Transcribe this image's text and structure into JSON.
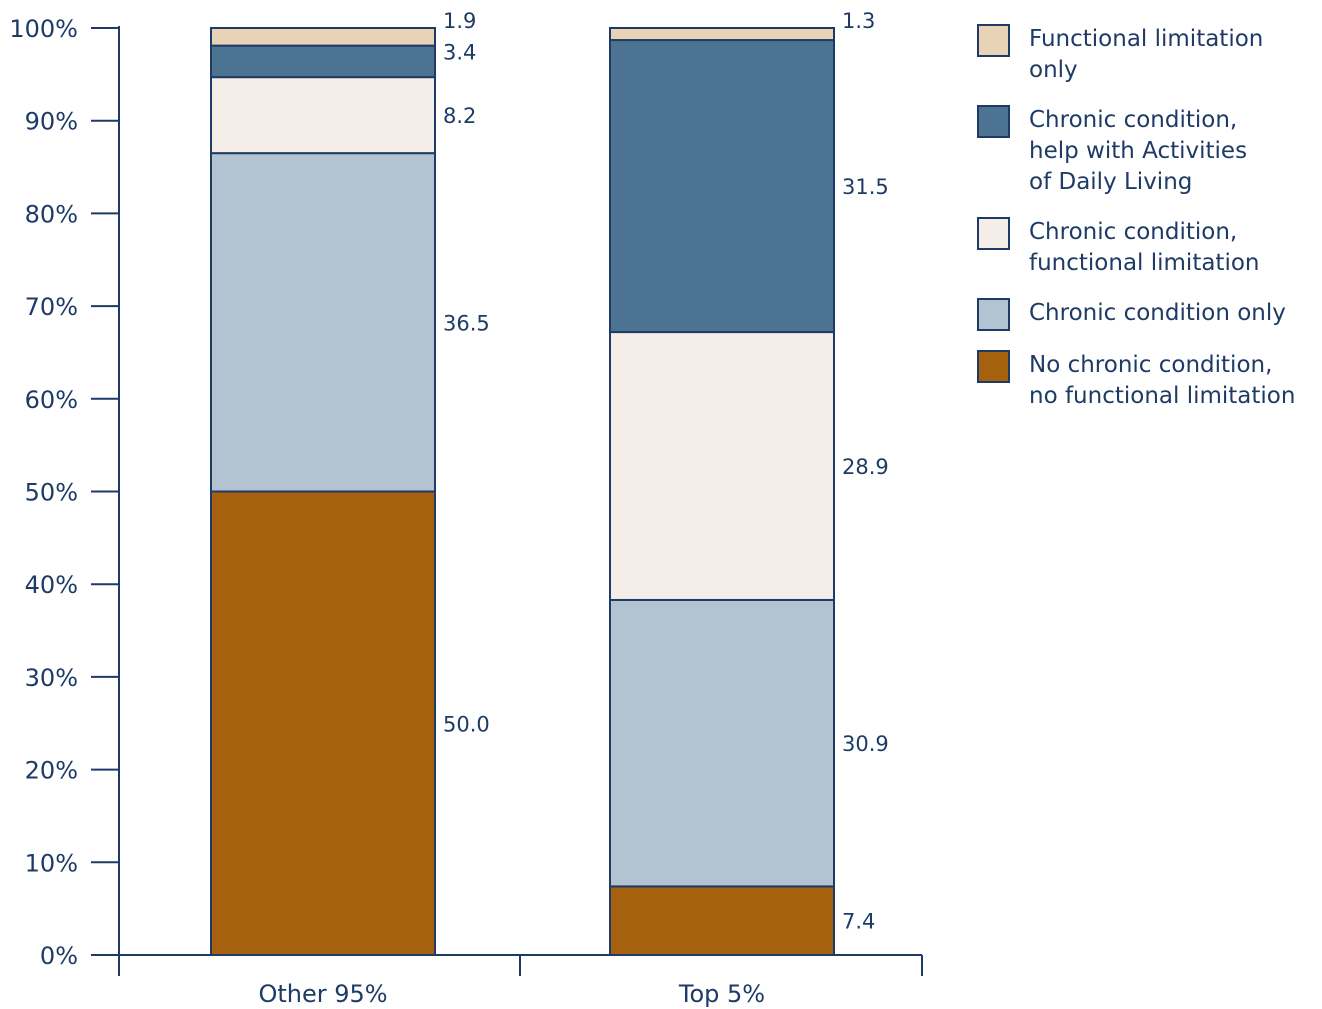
{
  "chart_data": {
    "type": "bar",
    "stacked": true,
    "categories": [
      "Other 95%",
      "Top 5%"
    ],
    "yticks": [
      "0%",
      "10%",
      "20%",
      "30%",
      "40%",
      "50%",
      "60%",
      "70%",
      "80%",
      "90%",
      "100%"
    ],
    "ylim": [
      0,
      100
    ],
    "grid": false,
    "legend_position": "right",
    "series": [
      {
        "name": "No chronic condition,\nno functional limitation",
        "color": "#a5610d",
        "values": [
          50.0,
          7.4
        ],
        "labels": [
          "50.0",
          "7.4"
        ]
      },
      {
        "name": "Chronic condition only",
        "color": "#b3c3d1",
        "values": [
          36.5,
          30.9
        ],
        "labels": [
          "36.5",
          "30.9"
        ]
      },
      {
        "name": "Chronic condition,\nfunctional limitation",
        "color": "#f5ede8",
        "values": [
          8.2,
          28.9
        ],
        "labels": [
          "8.2",
          "28.9"
        ]
      },
      {
        "name": "Chronic condition,\nhelp with Activities\nof Daily Living",
        "color": "#4d7393",
        "values": [
          3.4,
          31.5
        ],
        "labels": [
          "3.4",
          "31.5"
        ]
      },
      {
        "name": "Functional limitation only",
        "color": "#e8d3b7",
        "values": [
          1.9,
          1.3
        ],
        "labels": [
          "1.9",
          "1.3"
        ]
      }
    ],
    "axis_color": "#1e3b66"
  }
}
